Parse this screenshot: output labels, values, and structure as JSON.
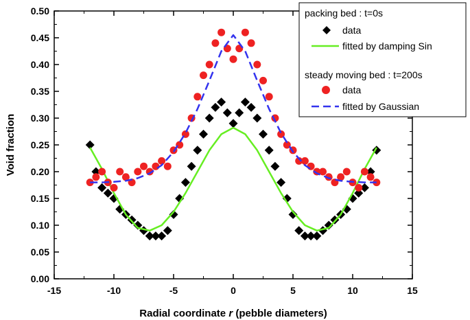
{
  "chart_data": {
    "type": "scatter",
    "xlabel_prefix": "Radial coordinate ",
    "xlabel_var": "r",
    "xlabel_suffix": " (pebble diameters)",
    "ylabel": "Void fraction",
    "xlim": [
      -15,
      15
    ],
    "ylim": [
      0,
      0.5
    ],
    "xticks": [
      -15,
      -10,
      -5,
      0,
      5,
      10,
      15
    ],
    "xtick_labels": [
      "-15",
      "-10",
      "-5",
      "0",
      "5",
      "10",
      "15"
    ],
    "yticks": [
      0,
      0.05,
      0.1,
      0.15,
      0.2,
      0.25,
      0.3,
      0.35,
      0.4,
      0.45,
      0.5
    ],
    "ytick_labels": [
      "0.00",
      "0.05",
      "0.10",
      "0.15",
      "0.20",
      "0.25",
      "0.30",
      "0.35",
      "0.40",
      "0.45",
      "0.50"
    ],
    "grid": false,
    "legend_position": "top-right",
    "legend": {
      "group1_title": "packing bed : t=0s",
      "group1_data": "data",
      "group1_fit": "fitted by damping Sin",
      "group2_title": "steady moving bed : t=200s",
      "group2_data": "data",
      "group2_fit": "fitted by Gaussian"
    },
    "colors": {
      "packing_data": "#000000",
      "packing_fit": "#66ee22",
      "moving_data": "#ee2222",
      "moving_fit": "#3333ee"
    },
    "series": [
      {
        "group": "packing bed : t=0s",
        "name": "data",
        "kind": "scatter",
        "marker": "diamond",
        "x": [
          -12,
          -11.5,
          -11,
          -10.5,
          -10,
          -9.5,
          -9,
          -8.5,
          -8,
          -7.5,
          -7,
          -6.5,
          -6,
          -5.5,
          -5,
          -4.5,
          -4,
          -3.5,
          -3,
          -2.5,
          -2,
          -1.5,
          -1,
          -0.5,
          0,
          0.5,
          1,
          1.5,
          2,
          2.5,
          3,
          3.5,
          4,
          4.5,
          5,
          5.5,
          6,
          6.5,
          7,
          7.5,
          8,
          8.5,
          9,
          9.5,
          10,
          10.5,
          11,
          11.5,
          12
        ],
        "y": [
          0.25,
          0.2,
          0.17,
          0.16,
          0.15,
          0.13,
          0.12,
          0.11,
          0.1,
          0.09,
          0.08,
          0.08,
          0.08,
          0.09,
          0.12,
          0.15,
          0.18,
          0.21,
          0.24,
          0.27,
          0.3,
          0.32,
          0.33,
          0.31,
          0.29,
          0.31,
          0.33,
          0.32,
          0.3,
          0.27,
          0.24,
          0.21,
          0.18,
          0.15,
          0.12,
          0.09,
          0.08,
          0.08,
          0.08,
          0.09,
          0.1,
          0.11,
          0.12,
          0.13,
          0.15,
          0.16,
          0.17,
          0.2,
          0.24
        ]
      },
      {
        "group": "packing bed : t=0s",
        "name": "fitted by damping Sin",
        "kind": "line",
        "x": [
          -12,
          -11,
          -10,
          -9,
          -8,
          -7,
          -6,
          -5,
          -4,
          -3,
          -2,
          -1,
          0,
          1,
          2,
          3,
          4,
          5,
          6,
          7,
          8,
          9,
          10,
          11,
          12
        ],
        "y": [
          0.245,
          0.205,
          0.16,
          0.12,
          0.095,
          0.09,
          0.1,
          0.125,
          0.16,
          0.2,
          0.24,
          0.27,
          0.282,
          0.27,
          0.24,
          0.2,
          0.16,
          0.125,
          0.1,
          0.09,
          0.095,
          0.12,
          0.16,
          0.205,
          0.245
        ]
      },
      {
        "group": "steady moving bed : t=200s",
        "name": "data",
        "kind": "scatter",
        "marker": "circle",
        "x": [
          -12,
          -11.5,
          -11,
          -10.5,
          -10,
          -9.5,
          -9,
          -8.5,
          -8,
          -7.5,
          -7,
          -6.5,
          -6,
          -5.5,
          -5,
          -4.5,
          -4,
          -3.5,
          -3,
          -2.5,
          -2,
          -1.5,
          -1,
          -0.5,
          0,
          0.5,
          1,
          1.5,
          2,
          2.5,
          3,
          3.5,
          4,
          4.5,
          5,
          5.5,
          6,
          6.5,
          7,
          7.5,
          8,
          8.5,
          9,
          9.5,
          10,
          10.5,
          11,
          11.5,
          12
        ],
        "y": [
          0.18,
          0.19,
          0.2,
          0.18,
          0.17,
          0.2,
          0.19,
          0.18,
          0.2,
          0.21,
          0.2,
          0.21,
          0.22,
          0.21,
          0.24,
          0.25,
          0.27,
          0.3,
          0.34,
          0.38,
          0.4,
          0.44,
          0.46,
          0.43,
          0.41,
          0.43,
          0.46,
          0.44,
          0.4,
          0.37,
          0.34,
          0.3,
          0.27,
          0.25,
          0.24,
          0.22,
          0.22,
          0.21,
          0.2,
          0.2,
          0.19,
          0.18,
          0.19,
          0.2,
          0.18,
          0.17,
          0.2,
          0.19,
          0.18
        ]
      },
      {
        "group": "steady moving bed : t=200s",
        "name": "fitted by Gaussian",
        "kind": "line",
        "dashed": true,
        "x": [
          -12,
          -11,
          -10,
          -9,
          -8,
          -7,
          -6,
          -5,
          -4,
          -3,
          -2,
          -1,
          0,
          1,
          2,
          3,
          4,
          5,
          6,
          7,
          8,
          9,
          10,
          11,
          12
        ],
        "y": [
          0.18,
          0.18,
          0.181,
          0.183,
          0.188,
          0.197,
          0.212,
          0.237,
          0.272,
          0.317,
          0.37,
          0.425,
          0.455,
          0.425,
          0.37,
          0.317,
          0.272,
          0.237,
          0.212,
          0.197,
          0.188,
          0.183,
          0.181,
          0.18,
          0.18
        ]
      }
    ]
  }
}
